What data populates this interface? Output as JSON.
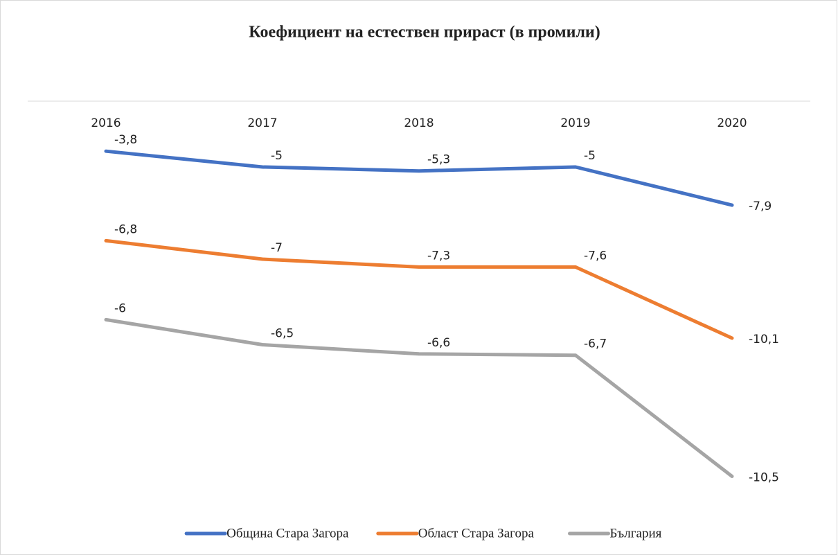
{
  "chart_data": {
    "type": "line",
    "stacked": true,
    "title": "Коефициент на естествен прираст (в промили)",
    "categories": [
      "2016",
      "2017",
      "2018",
      "2019",
      "2020"
    ],
    "series": [
      {
        "name": "Община Стара Загора",
        "color": "#4472c4",
        "values": [
          -3.8,
          -5,
          -5.3,
          -5,
          -7.9
        ],
        "value_labels": [
          "-3,8",
          "-5",
          "-5,3",
          "-5",
          "-7,9"
        ]
      },
      {
        "name": "Област Стара Загора",
        "color": "#ed7d31",
        "values": [
          -6.8,
          -7,
          -7.3,
          -7.6,
          -10.1
        ],
        "value_labels": [
          "-6,8",
          "-7",
          "-7,3",
          "-7,6",
          "-10,1"
        ]
      },
      {
        "name": "България",
        "color": "#a5a5a5",
        "values": [
          -6,
          -6.5,
          -6.6,
          -6.7,
          -10.5
        ],
        "value_labels": [
          "-6",
          "-6,5",
          "-6,6",
          "-6,7",
          "-10,5"
        ]
      }
    ],
    "ylim": [
      -30,
      0
    ]
  }
}
